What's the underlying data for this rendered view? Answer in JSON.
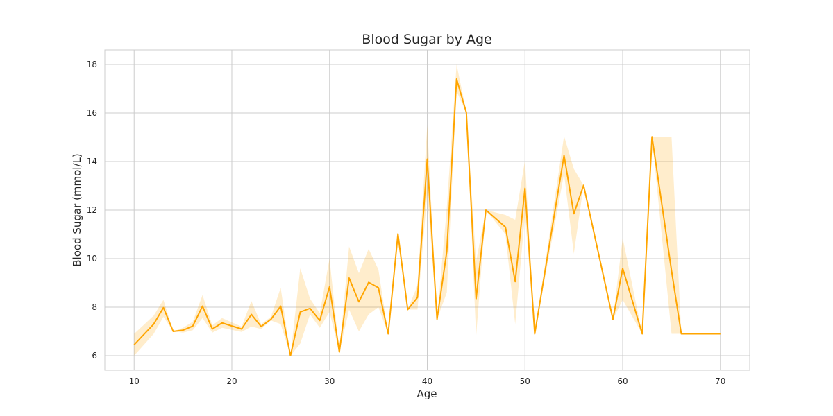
{
  "chart_data": {
    "type": "line",
    "title": "Blood Sugar by Age",
    "xlabel": "Age",
    "ylabel": "Blood Sugar (mmol/L)",
    "xlim": [
      7,
      73
    ],
    "ylim": [
      5.4,
      18.6
    ],
    "xticks": [
      10,
      20,
      30,
      40,
      50,
      60,
      70
    ],
    "yticks": [
      6,
      8,
      10,
      12,
      14,
      16,
      18
    ],
    "grid": true,
    "line_color": "#ffa500",
    "band_color": "#ffa500",
    "series": [
      {
        "x": [
          10,
          12,
          13,
          14,
          15,
          16,
          17,
          18,
          19,
          21,
          22,
          23,
          24,
          25,
          26,
          27,
          28,
          29,
          30,
          31,
          32,
          33,
          34,
          35,
          36,
          37,
          38,
          39,
          40,
          41,
          42,
          43,
          44,
          45,
          46,
          48,
          49,
          50,
          51,
          54,
          55,
          56,
          59,
          60,
          62,
          63,
          65,
          66,
          70
        ],
        "y": [
          6.45,
          7.3,
          7.98,
          7.0,
          7.05,
          7.22,
          8.04,
          7.1,
          7.35,
          7.1,
          7.7,
          7.2,
          7.5,
          8.04,
          6.0,
          7.8,
          7.95,
          7.45,
          8.84,
          6.15,
          9.2,
          8.22,
          9.02,
          8.8,
          6.9,
          11.02,
          7.9,
          8.4,
          14.1,
          7.5,
          10.3,
          17.4,
          16.02,
          8.35,
          12.0,
          11.3,
          9.05,
          12.9,
          6.9,
          14.25,
          11.85,
          13.02,
          7.5,
          9.6,
          6.9,
          15.02,
          9.5,
          6.9,
          6.9
        ],
        "ci_low": [
          6.0,
          6.9,
          7.6,
          7.0,
          6.95,
          7.05,
          7.55,
          6.95,
          7.15,
          6.98,
          7.2,
          7.1,
          7.45,
          7.3,
          6.0,
          6.5,
          7.7,
          7.15,
          7.8,
          6.15,
          7.9,
          7.0,
          7.7,
          8.0,
          6.9,
          11.02,
          7.9,
          7.9,
          12.7,
          7.5,
          8.6,
          16.9,
          16.0,
          6.8,
          12.0,
          11.0,
          7.3,
          11.8,
          6.9,
          13.5,
          10.2,
          13.02,
          7.5,
          8.3,
          6.9,
          15.02,
          6.9,
          6.9,
          6.9
        ],
        "ci_high": [
          6.9,
          7.65,
          8.3,
          7.0,
          7.15,
          7.4,
          8.5,
          7.25,
          7.55,
          7.2,
          8.25,
          7.3,
          7.6,
          8.8,
          6.0,
          9.6,
          8.35,
          7.75,
          10.0,
          6.15,
          10.5,
          9.4,
          10.4,
          9.55,
          6.9,
          11.02,
          7.9,
          8.9,
          15.5,
          7.5,
          12.1,
          18.0,
          16.05,
          9.9,
          12.0,
          11.8,
          11.6,
          14.05,
          6.9,
          15.05,
          13.7,
          13.02,
          7.5,
          10.85,
          6.9,
          15.02,
          15.02,
          6.9,
          6.9
        ]
      }
    ]
  }
}
